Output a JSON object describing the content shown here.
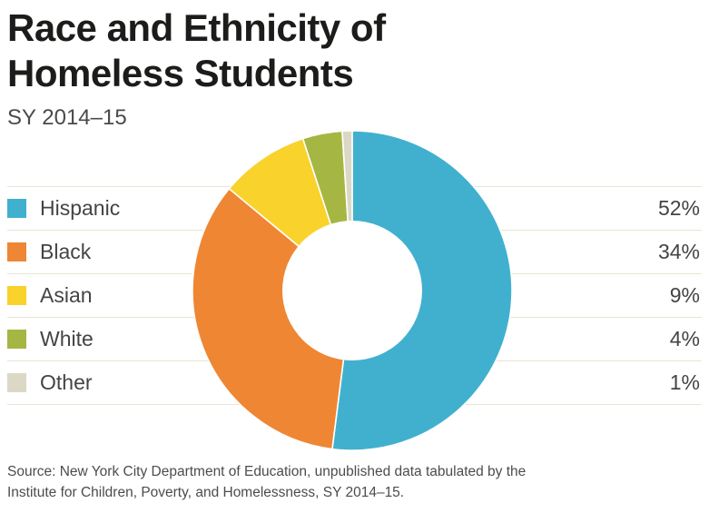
{
  "header": {
    "title_line1": "Race and Ethnicity of",
    "title_line2": "Homeless Students",
    "subtitle": "SY 2014–15"
  },
  "source": {
    "line1": "Source: New York City Department of Education, unpublished data tabulated by the",
    "line2": "Institute for Children, Poverty, and Homelessness, SY 2014–15."
  },
  "chart_data": {
    "type": "pie",
    "subtype": "donut",
    "title": "Race and Ethnicity of Homeless Students",
    "subtitle": "SY 2014–15",
    "categories": [
      "Hispanic",
      "Black",
      "Asian",
      "White",
      "Other"
    ],
    "values": [
      52,
      34,
      9,
      4,
      1
    ],
    "value_labels": [
      "52%",
      "34%",
      "9%",
      "4%",
      "1%"
    ],
    "unit": "%",
    "colors": [
      "#41b0cf",
      "#ef8633",
      "#f9d22c",
      "#a6b643",
      "#dbd8c6"
    ],
    "start_angle_deg": 0,
    "direction": "clockwise",
    "donut_hole_ratio": 0.44,
    "legend_position": "left",
    "slice_separator_color": "#ffffff"
  },
  "styles": {
    "separator_color": "#e8e5d3",
    "title_color": "#1c1c1a",
    "label_color": "#444444",
    "source_color": "#4c4c4c",
    "background": "#ffffff"
  }
}
